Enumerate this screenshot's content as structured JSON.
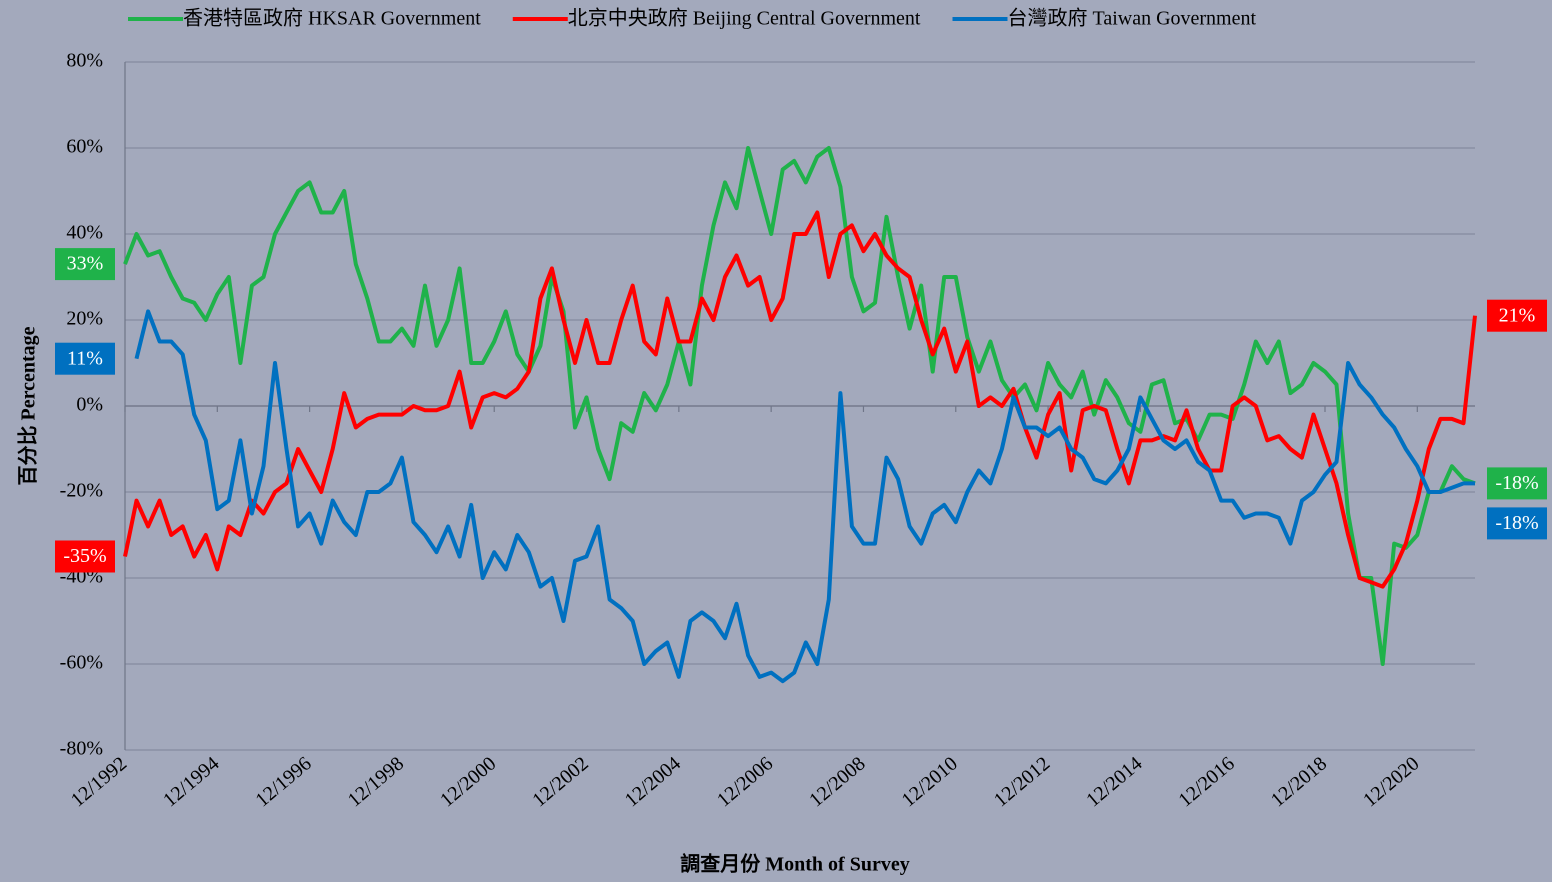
{
  "chart_data": {
    "type": "line",
    "y_label": "百分比 Percentage",
    "x_label": "調查月份 Month of Survey",
    "x": [
      "12/1992",
      "3/1993",
      "6/1993",
      "9/1993",
      "12/1993",
      "3/1994",
      "6/1994",
      "9/1994",
      "12/1994",
      "3/1995",
      "6/1995",
      "9/1995",
      "12/1995",
      "3/1996",
      "6/1996",
      "9/1996",
      "12/1996",
      "3/1997",
      "6/1997",
      "9/1997",
      "12/1997",
      "3/1998",
      "6/1998",
      "9/1998",
      "12/1998",
      "3/1999",
      "6/1999",
      "9/1999",
      "12/1999",
      "3/2000",
      "6/2000",
      "9/2000",
      "12/2000",
      "3/2001",
      "6/2001",
      "9/2001",
      "12/2001",
      "3/2002",
      "6/2002",
      "9/2002",
      "12/2002",
      "3/2003",
      "6/2003",
      "9/2003",
      "12/2003",
      "3/2004",
      "6/2004",
      "9/2004",
      "12/2004",
      "3/2005",
      "6/2005",
      "9/2005",
      "12/2005",
      "3/2006",
      "6/2006",
      "9/2006",
      "12/2006",
      "3/2007",
      "6/2007",
      "9/2007",
      "12/2007",
      "3/2008",
      "6/2008",
      "9/2008",
      "12/2008",
      "3/2009",
      "6/2009",
      "9/2009",
      "12/2009",
      "3/2010",
      "6/2010",
      "9/2010",
      "12/2010",
      "3/2011",
      "6/2011",
      "9/2011",
      "12/2011",
      "3/2012",
      "6/2012",
      "9/2012",
      "12/2012",
      "3/2013",
      "6/2013",
      "9/2013",
      "12/2013",
      "3/2014",
      "6/2014",
      "9/2014",
      "12/2014",
      "3/2015",
      "6/2015",
      "9/2015",
      "12/2015",
      "3/2016",
      "6/2016",
      "9/2016",
      "12/2016",
      "3/2017",
      "6/2017",
      "9/2017",
      "12/2017",
      "3/2018",
      "6/2018",
      "9/2018",
      "12/2018",
      "3/2019",
      "6/2019",
      "9/2019",
      "12/2019",
      "3/2020",
      "6/2020",
      "9/2020",
      "12/2020",
      "3/2021",
      "6/2021",
      "9/2021",
      "12/2021",
      "3/2022"
    ],
    "xlim": [
      "12/1992",
      "3/2022"
    ],
    "xticks": [
      "12/1992",
      "12/1994",
      "12/1996",
      "12/1998",
      "12/2000",
      "12/2002",
      "12/2004",
      "12/2006",
      "12/2008",
      "12/2010",
      "12/2012",
      "12/2014",
      "12/2016",
      "12/2018",
      "12/2020"
    ],
    "ylim": [
      -80,
      80
    ],
    "yticks": [
      {
        "value": -80,
        "label": "-80%"
      },
      {
        "value": -60,
        "label": "-60%"
      },
      {
        "value": -40,
        "label": "-40%"
      },
      {
        "value": -20,
        "label": "-20%"
      },
      {
        "value": 0,
        "label": "0%"
      },
      {
        "value": 20,
        "label": "20%"
      },
      {
        "value": 40,
        "label": "40%"
      },
      {
        "value": 60,
        "label": "60%"
      },
      {
        "value": 80,
        "label": "80%"
      }
    ],
    "grid": true,
    "legend": "top",
    "series": [
      {
        "name": "香港特區政府 HKSAR Government",
        "color": "#1fb24a",
        "values": [
          33,
          40,
          35,
          36,
          30,
          25,
          24,
          20,
          26,
          30,
          10,
          28,
          30,
          40,
          45,
          50,
          52,
          45,
          45,
          50,
          33,
          25,
          15,
          15,
          18,
          14,
          28,
          14,
          20,
          32,
          10,
          10,
          15,
          22,
          12,
          8,
          14,
          30,
          22,
          -5,
          2,
          -10,
          -17,
          -4,
          -6,
          3,
          -1,
          5,
          15,
          5,
          28,
          42,
          52,
          46,
          60,
          50,
          40,
          55,
          57,
          52,
          58,
          60,
          51,
          30,
          22,
          24,
          44,
          30,
          18,
          28,
          8,
          30,
          30,
          16,
          8,
          15,
          6,
          2,
          5,
          -1,
          10,
          5,
          2,
          8,
          -2,
          6,
          2,
          -4,
          -6,
          5,
          6,
          -4,
          -3,
          -8,
          -2,
          -2,
          -3,
          5,
          15,
          10,
          15,
          3,
          5,
          10,
          8,
          5,
          -25,
          -40,
          -40,
          -60,
          -32,
          -33,
          -30,
          -20,
          -20,
          -14,
          -17,
          -18
        ],
        "value_labels": [
          "33%",
          null,
          null,
          null,
          null,
          null,
          null,
          null,
          null,
          null,
          null,
          null,
          null,
          null,
          null,
          null,
          null,
          null,
          null,
          null,
          null,
          null,
          null,
          null,
          null,
          null,
          null,
          null,
          null,
          null,
          null,
          null,
          null,
          null,
          null,
          null,
          null,
          null,
          null,
          null,
          null,
          null,
          null,
          null,
          null,
          null,
          null,
          null,
          null,
          null,
          null,
          null,
          null,
          null,
          null,
          null,
          null,
          null,
          null,
          null,
          null,
          null,
          null,
          null,
          null,
          null,
          null,
          null,
          null,
          null,
          null,
          null,
          null,
          null,
          null,
          null,
          null,
          null,
          null,
          null,
          null,
          null,
          null,
          null,
          null,
          null,
          null,
          null,
          null,
          null,
          null,
          null,
          null,
          null,
          null,
          null,
          null,
          null,
          null,
          null,
          null,
          null,
          null,
          null,
          null,
          null,
          null,
          null,
          null,
          null,
          null,
          null,
          null,
          null,
          null,
          null,
          null,
          "-18%"
        ]
      },
      {
        "name": "北京中央政府 Beijing Central Government",
        "color": "#ff0000",
        "values": [
          -35,
          -22,
          -28,
          -22,
          -30,
          -28,
          -35,
          -30,
          -38,
          -28,
          -30,
          -22,
          -25,
          -20,
          -18,
          -10,
          -15,
          -20,
          -10,
          3,
          -5,
          -3,
          -2,
          -2,
          -2,
          0,
          -1,
          -1,
          0,
          8,
          -5,
          2,
          3,
          2,
          4,
          8,
          25,
          32,
          20,
          10,
          20,
          10,
          10,
          20,
          28,
          15,
          12,
          25,
          15,
          15,
          25,
          20,
          30,
          35,
          28,
          30,
          20,
          25,
          40,
          40,
          45,
          30,
          40,
          42,
          36,
          40,
          35,
          32,
          30,
          20,
          12,
          18,
          8,
          15,
          0,
          2,
          0,
          4,
          -5,
          -12,
          -2,
          3,
          -15,
          -1,
          0,
          -1,
          -10,
          -18,
          -8,
          -8,
          -7,
          -8,
          -1,
          -10,
          -15,
          -15,
          0,
          2,
          0,
          -8,
          -7,
          -10,
          -12,
          -2,
          -10,
          -18,
          -30,
          -40,
          -41,
          -42,
          -38,
          -32,
          -22,
          -10,
          -3,
          -3,
          -4,
          21
        ],
        "value_labels": [
          "-35%",
          null,
          null,
          null,
          null,
          null,
          null,
          null,
          null,
          null,
          null,
          null,
          null,
          null,
          null,
          null,
          null,
          null,
          null,
          null,
          null,
          null,
          null,
          null,
          null,
          null,
          null,
          null,
          null,
          null,
          null,
          null,
          null,
          null,
          null,
          null,
          null,
          null,
          null,
          null,
          null,
          null,
          null,
          null,
          null,
          null,
          null,
          null,
          null,
          null,
          null,
          null,
          null,
          null,
          null,
          null,
          null,
          null,
          null,
          null,
          null,
          null,
          null,
          null,
          null,
          null,
          null,
          null,
          null,
          null,
          null,
          null,
          null,
          null,
          null,
          null,
          null,
          null,
          null,
          null,
          null,
          null,
          null,
          null,
          null,
          null,
          null,
          null,
          null,
          null,
          null,
          null,
          null,
          null,
          null,
          null,
          null,
          null,
          null,
          null,
          null,
          null,
          null,
          null,
          null,
          null,
          null,
          null,
          null,
          null,
          null,
          null,
          null,
          null,
          null,
          null,
          null,
          "21%"
        ]
      },
      {
        "name": "台灣政府 Taiwan Government",
        "color": "#0070c0",
        "values": [
          null,
          11,
          22,
          15,
          15,
          12,
          -2,
          -8,
          -24,
          -22,
          -8,
          -25,
          -14,
          10,
          -10,
          -28,
          -25,
          -32,
          -22,
          -27,
          -30,
          -20,
          -20,
          -18,
          -12,
          -27,
          -30,
          -34,
          -28,
          -35,
          -23,
          -40,
          -34,
          -38,
          -30,
          -34,
          -42,
          -40,
          -50,
          -36,
          -35,
          -28,
          -45,
          -47,
          -50,
          -60,
          -57,
          -55,
          -63,
          -50,
          -48,
          -50,
          -54,
          -46,
          -58,
          -63,
          -62,
          -64,
          -62,
          -55,
          -60,
          -45,
          3,
          -28,
          -32,
          -32,
          -12,
          -17,
          -28,
          -32,
          -25,
          -23,
          -27,
          -20,
          -15,
          -18,
          -10,
          2,
          -5,
          -5,
          -7,
          -5,
          -10,
          -12,
          -17,
          -18,
          -15,
          -10,
          2,
          -3,
          -8,
          -10,
          -8,
          -13,
          -15,
          -22,
          -22,
          -26,
          -25,
          -25,
          -26,
          -32,
          -22,
          -20,
          -16,
          -13,
          10,
          5,
          2,
          -2,
          -5,
          -10,
          -14,
          -20,
          -20,
          -19,
          -18,
          -18
        ],
        "value_labels": [
          null,
          "11%",
          null,
          null,
          null,
          null,
          null,
          null,
          null,
          null,
          null,
          null,
          null,
          null,
          null,
          null,
          null,
          null,
          null,
          null,
          null,
          null,
          null,
          null,
          null,
          null,
          null,
          null,
          null,
          null,
          null,
          null,
          null,
          null,
          null,
          null,
          null,
          null,
          null,
          null,
          null,
          null,
          null,
          null,
          null,
          null,
          null,
          null,
          null,
          null,
          null,
          null,
          null,
          null,
          null,
          null,
          null,
          null,
          null,
          null,
          null,
          null,
          null,
          null,
          null,
          null,
          null,
          null,
          null,
          null,
          null,
          null,
          null,
          null,
          null,
          null,
          null,
          null,
          null,
          null,
          null,
          null,
          null,
          null,
          null,
          null,
          null,
          null,
          null,
          null,
          null,
          null,
          null,
          null,
          null,
          null,
          null,
          null,
          null,
          null,
          null,
          null,
          null,
          null,
          null,
          null,
          null,
          null,
          null,
          null,
          null,
          null,
          null,
          null,
          null,
          null,
          null,
          "-18%"
        ]
      }
    ]
  }
}
